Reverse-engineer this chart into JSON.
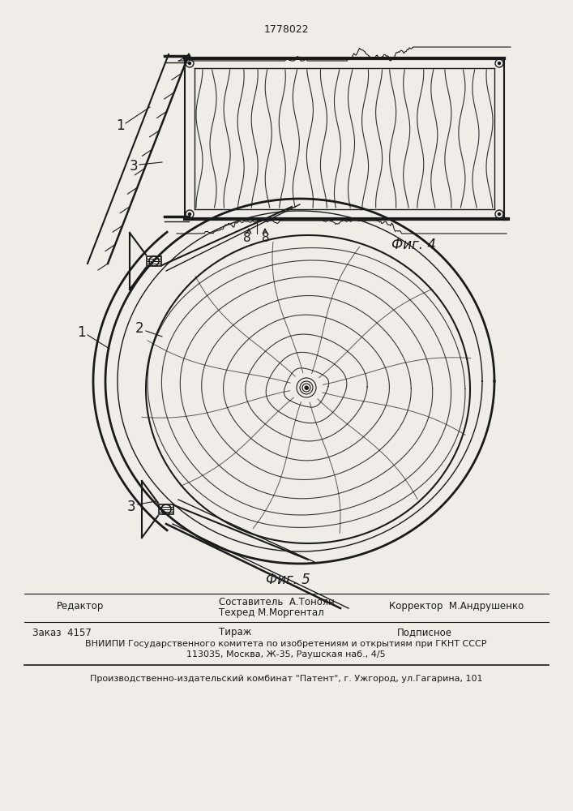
{
  "patent_number": "1778022",
  "fig4_label": "Фиг. 4",
  "fig5_label": "Фиг. 5",
  "label_1_fig4": "1",
  "label_3_fig4": "3",
  "label_8a": "8",
  "label_8b": "8",
  "label_1_fig5": "1",
  "label_2_fig5": "2",
  "label_3_fig5": "3",
  "footer_editor": "Редактор",
  "footer_composer": "Составитель  А.Тоноян",
  "footer_techred": "Техред М.Моргентал",
  "footer_corrector": "Корректор  М.Андрушенко",
  "footer_order": "Заказ  4157",
  "footer_tirazh": "Тираж",
  "footer_podpisnoe": "Подписное",
  "footer_vniipи": "ВНИИПИ Государственного комитета по изобретениям и открытиям при ГКНТ СССР",
  "footer_address": "113035, Москва, Ж-35, Раушская наб., 4/5",
  "footer_factory": "Производственно-издательский комбинат \"Патент\", г. Ужгород, ул.Гагарина, 101",
  "bg_color": "#f0ede8",
  "line_color": "#1a1a1a"
}
